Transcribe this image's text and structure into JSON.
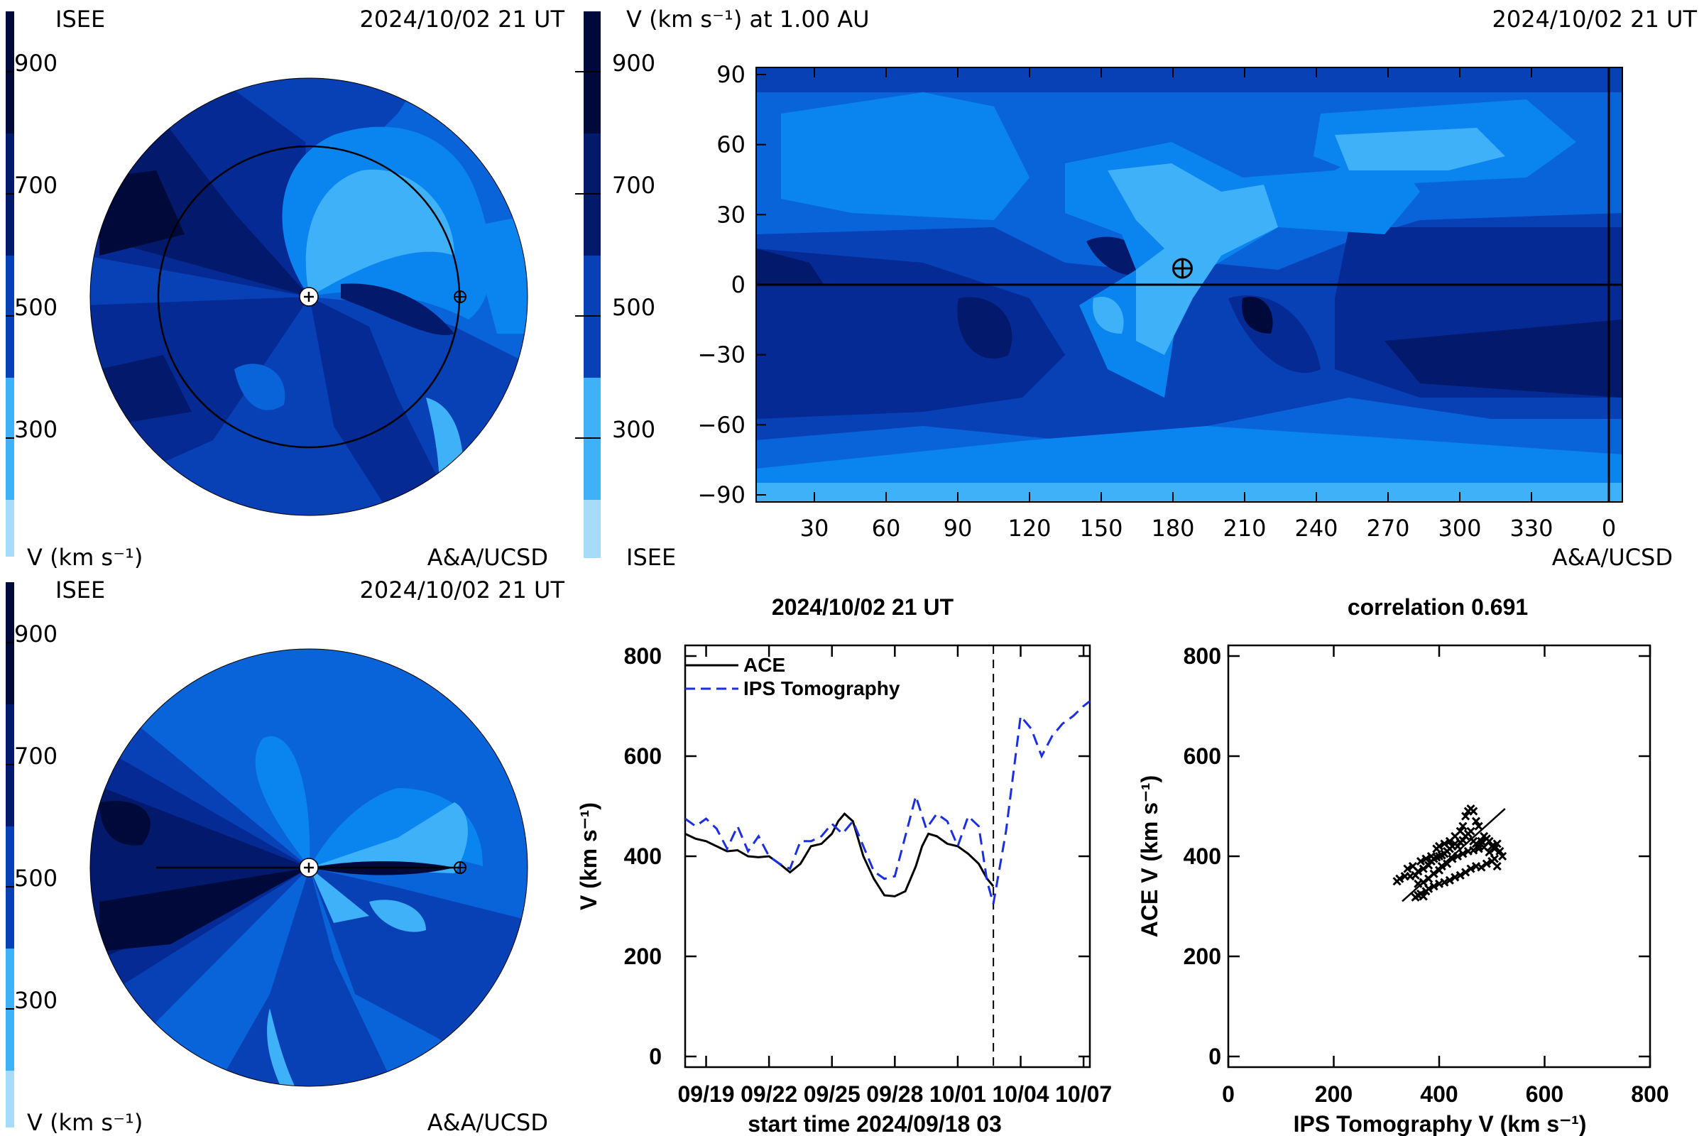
{
  "colors": {
    "levels": [
      "#a6dcfa",
      "#3fb1f9",
      "#0a85f0",
      "#0a64d9",
      "#0741b5",
      "#052a94",
      "#03196b",
      "#000a3a"
    ],
    "background": "#ffffff",
    "ips_line": "#1a2ee6",
    "ace_line": "#000000"
  },
  "panels": {
    "ecliptic_top": {
      "left_title": "ISEE",
      "right_title": "2024/10/02 21 UT",
      "left_footer": "V (km s⁻¹)",
      "right_footer": "A&A/UCSD",
      "colorbar_ticks": [
        "900",
        "700",
        "500",
        "300"
      ]
    },
    "meridional": {
      "left_title": "ISEE",
      "right_title": "2024/10/02 21 UT",
      "left_footer": "V (km s⁻¹)",
      "right_footer": "A&A/UCSD",
      "colorbar_ticks": [
        "900",
        "700",
        "500",
        "300"
      ]
    },
    "synoptic_map": {
      "title": "V (km s⁻¹) at 1.00 AU",
      "date": "2024/10/02 21 UT",
      "left_footer": "ISEE",
      "right_footer": "A&A/UCSD",
      "colorbar_ticks": [
        "900",
        "700",
        "500",
        "300"
      ]
    },
    "timeseries": {
      "title": "2024/10/02 21 UT",
      "xlabel": "start time 2024/09/18 03",
      "ylabel": "V (km s⁻¹)"
    },
    "scatter": {
      "title": "correlation 0.691",
      "xlabel": "IPS Tomography V (km s⁻¹)",
      "ylabel": "ACE V (km s⁻¹)"
    }
  },
  "chart_data": [
    {
      "type": "heatmap",
      "name": "synoptic-map",
      "x_ticks": [
        "30",
        "60",
        "90",
        "120",
        "150",
        "180",
        "210",
        "240",
        "270",
        "300",
        "330",
        "0"
      ],
      "y_ticks": [
        "90",
        "60",
        "30",
        "0",
        "−30",
        "−60",
        "−90"
      ],
      "ylim": [
        -90,
        90
      ],
      "earth_position": {
        "longitude": 184,
        "latitude": 7
      }
    },
    {
      "type": "line",
      "name": "ace-vs-ips-timeseries",
      "x_ticks": [
        "09/19",
        "09/22",
        "09/25",
        "09/28",
        "10/01",
        "10/04",
        "10/07"
      ],
      "x_tick_days": [
        1,
        4,
        7,
        10,
        13,
        16,
        19
      ],
      "xlim": [
        0,
        19.3
      ],
      "y_ticks": [
        "0",
        "200",
        "400",
        "600",
        "800"
      ],
      "ylim": [
        0,
        800
      ],
      "current_time_day": 14.7,
      "series": [
        {
          "name": "ACE",
          "style": "solid",
          "x": [
            0,
            0.5,
            1,
            1.5,
            2,
            2.5,
            3,
            3.5,
            4,
            4.5,
            5,
            5.5,
            6,
            6.5,
            7,
            7.3,
            7.6,
            8,
            8.5,
            9,
            9.5,
            10,
            10.5,
            11,
            11.3,
            11.6,
            12,
            12.5,
            13,
            13.5,
            14,
            14.4,
            14.7
          ],
          "y": [
            445,
            435,
            430,
            420,
            410,
            412,
            400,
            398,
            400,
            385,
            368,
            385,
            420,
            425,
            445,
            470,
            485,
            470,
            400,
            355,
            322,
            320,
            330,
            380,
            420,
            445,
            440,
            425,
            420,
            405,
            385,
            355,
            340
          ]
        },
        {
          "name": "IPS Tomography",
          "style": "dashed",
          "x": [
            0,
            0.5,
            1,
            1.5,
            2,
            2.5,
            3,
            3.5,
            4,
            4.5,
            5,
            5.5,
            6,
            6.5,
            7,
            7.5,
            8,
            8.5,
            9,
            9.5,
            10,
            10.5,
            11,
            11.5,
            12,
            12.5,
            13,
            13.5,
            14,
            14.4,
            14.7,
            15.3,
            16,
            16.5,
            17,
            17.5,
            18,
            18.5,
            19,
            19.3
          ],
          "y": [
            475,
            460,
            475,
            455,
            415,
            460,
            410,
            440,
            400,
            385,
            375,
            430,
            430,
            440,
            465,
            445,
            470,
            420,
            370,
            355,
            360,
            440,
            520,
            455,
            485,
            470,
            420,
            480,
            460,
            350,
            305,
            450,
            680,
            655,
            600,
            640,
            665,
            680,
            700,
            710
          ]
        }
      ]
    },
    {
      "type": "scatter",
      "name": "ace-vs-ips-scatter",
      "x_ticks": [
        "0",
        "200",
        "400",
        "600",
        "800"
      ],
      "y_ticks": [
        "0",
        "200",
        "400",
        "600",
        "800"
      ],
      "xlim": [
        0,
        800
      ],
      "ylim": [
        0,
        800
      ],
      "points": [
        [
          320,
          350
        ],
        [
          325,
          355
        ],
        [
          335,
          360
        ],
        [
          345,
          360
        ],
        [
          355,
          362
        ],
        [
          360,
          370
        ],
        [
          370,
          375
        ],
        [
          380,
          382
        ],
        [
          385,
          390
        ],
        [
          390,
          395
        ],
        [
          395,
          398
        ],
        [
          400,
          400
        ],
        [
          405,
          402
        ],
        [
          410,
          405
        ],
        [
          415,
          410
        ],
        [
          420,
          415
        ],
        [
          425,
          420
        ],
        [
          430,
          425
        ],
        [
          435,
          420
        ],
        [
          440,
          428
        ],
        [
          445,
          432
        ],
        [
          450,
          440
        ],
        [
          455,
          445
        ],
        [
          460,
          450
        ],
        [
          465,
          430
        ],
        [
          470,
          425
        ],
        [
          475,
          420
        ],
        [
          480,
          430
        ],
        [
          485,
          440
        ],
        [
          490,
          435
        ],
        [
          495,
          430
        ],
        [
          500,
          420
        ],
        [
          505,
          415
        ],
        [
          510,
          425
        ],
        [
          515,
          410
        ],
        [
          520,
          400
        ],
        [
          355,
          318
        ],
        [
          360,
          322
        ],
        [
          365,
          325
        ],
        [
          370,
          320
        ],
        [
          375,
          330
        ],
        [
          380,
          335
        ],
        [
          390,
          340
        ],
        [
          400,
          345
        ],
        [
          410,
          348
        ],
        [
          420,
          352
        ],
        [
          430,
          358
        ],
        [
          440,
          362
        ],
        [
          450,
          368
        ],
        [
          460,
          375
        ],
        [
          470,
          380
        ],
        [
          480,
          378
        ],
        [
          490,
          385
        ],
        [
          500,
          390
        ],
        [
          505,
          395
        ],
        [
          510,
          380
        ],
        [
          450,
          480
        ],
        [
          455,
          490
        ],
        [
          460,
          495
        ],
        [
          465,
          490
        ],
        [
          470,
          470
        ],
        [
          475,
          460
        ],
        [
          445,
          460
        ],
        [
          440,
          450
        ],
        [
          430,
          440
        ],
        [
          420,
          430
        ],
        [
          410,
          425
        ],
        [
          400,
          420
        ],
        [
          395,
          415
        ],
        [
          385,
          400
        ],
        [
          375,
          395
        ],
        [
          365,
          390
        ],
        [
          350,
          380
        ],
        [
          340,
          375
        ],
        [
          335,
          360
        ],
        [
          360,
          345
        ],
        [
          370,
          348
        ],
        [
          380,
          355
        ],
        [
          390,
          365
        ],
        [
          400,
          372
        ],
        [
          405,
          380
        ],
        [
          415,
          385
        ],
        [
          425,
          395
        ],
        [
          435,
          400
        ],
        [
          445,
          405
        ],
        [
          455,
          410
        ],
        [
          465,
          412
        ],
        [
          475,
          415
        ],
        [
          485,
          418
        ],
        [
          495,
          408
        ]
      ],
      "fit_line": {
        "x": [
          330,
          525
        ],
        "y": [
          310,
          495
        ]
      }
    }
  ]
}
